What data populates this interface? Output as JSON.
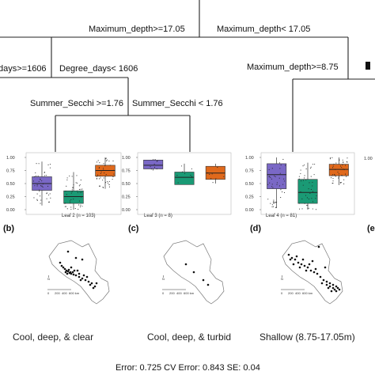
{
  "tree": {
    "root_left": "Maximum_depth>=17.05",
    "root_right": "Maximum_depth< 17.05",
    "deg_left": "days>=1606",
    "deg_right": "Degree_days< 1606",
    "secchi_left": "Summer_Secchi >=1.76",
    "secchi_right": "Summer_Secchi < 1.76",
    "right_split": "Maximum_depth>=8.75"
  },
  "y_ticks": [
    "1.00",
    "0.75",
    "0.50",
    "0.25",
    "0.00"
  ],
  "y_ticks_partial": "1.00",
  "colors": {
    "purple": "#7a68c6",
    "green": "#1a9a75",
    "orange": "#e0691c"
  },
  "leaves": [
    {
      "label": "Leaf 2 (n = 103)",
      "panel": "(b)",
      "description": "Cool, deep, & clear",
      "boxes": [
        {
          "color": "purple",
          "q1": 0.37,
          "median": 0.5,
          "q3": 0.63,
          "whisker_low": 0.08,
          "whisker_high": 0.92
        },
        {
          "color": "green",
          "q1": 0.12,
          "median": 0.25,
          "q3": 0.36,
          "whisker_low": 0.0,
          "whisker_high": 0.72
        },
        {
          "color": "orange",
          "q1": 0.64,
          "median": 0.75,
          "q3": 0.85,
          "whisker_low": 0.4,
          "whisker_high": 1.0
        }
      ]
    },
    {
      "label": "Leaf 3 (n = 8)",
      "panel": "(c)",
      "description": "Cool, deep, & turbid",
      "boxes": [
        {
          "color": "purple",
          "q1": 0.78,
          "median": 0.85,
          "q3": 0.95,
          "whisker_low": 0.75,
          "whisker_high": 0.97
        },
        {
          "color": "green",
          "q1": 0.48,
          "median": 0.62,
          "q3": 0.72,
          "whisker_low": 0.48,
          "whisker_high": 0.88
        },
        {
          "color": "orange",
          "q1": 0.58,
          "median": 0.7,
          "q3": 0.83,
          "whisker_low": 0.5,
          "whisker_high": 0.88
        }
      ]
    },
    {
      "label": "Leaf 4 (n = 81)",
      "panel": "(d)",
      "description": "Shallow (8.75-17.05m)",
      "boxes": [
        {
          "color": "purple",
          "q1": 0.4,
          "median": 0.67,
          "q3": 0.88,
          "whisker_low": 0.04,
          "whisker_high": 1.0
        },
        {
          "color": "green",
          "q1": 0.12,
          "median": 0.33,
          "q3": 0.58,
          "whisker_low": 0.0,
          "whisker_high": 0.9
        },
        {
          "color": "orange",
          "q1": 0.65,
          "median": 0.77,
          "q3": 0.87,
          "whisker_low": 0.47,
          "whisker_high": 1.0
        }
      ]
    }
  ],
  "panel_e": "(e",
  "map_compass": "N",
  "map_scale": [
    "0",
    "200",
    "400",
    "600 km"
  ],
  "footer": "Error: 0.725 CV Error: 0.843 SE: 0.04"
}
